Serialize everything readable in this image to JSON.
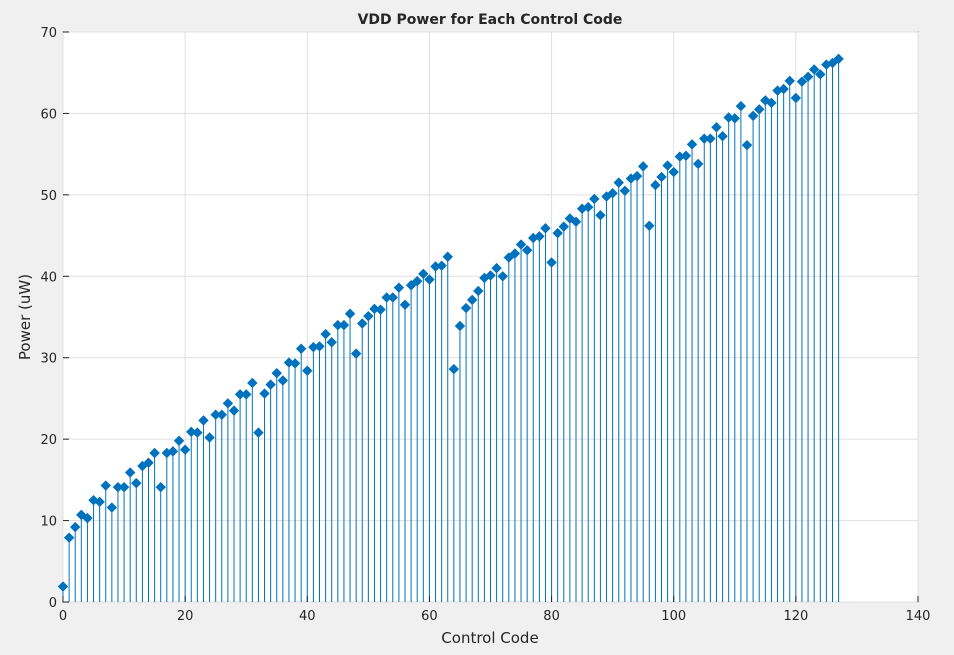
{
  "chart_data": {
    "type": "stem",
    "title": "VDD Power for Each Control Code",
    "xlabel": "Control Code",
    "ylabel": "Power (uW)",
    "xlim": [
      0,
      140
    ],
    "ylim": [
      0,
      70
    ],
    "xticks": [
      0,
      20,
      40,
      60,
      80,
      100,
      120,
      140
    ],
    "yticks": [
      0,
      10,
      20,
      30,
      40,
      50,
      60,
      70
    ],
    "grid": true,
    "color": "#0072BD",
    "series": [
      {
        "x": [
          0,
          1,
          2,
          3,
          4,
          5,
          6,
          7,
          8,
          9,
          10,
          11,
          12,
          13,
          14,
          15,
          16,
          17,
          18,
          19,
          20,
          21,
          22,
          23,
          24,
          25,
          26,
          27,
          28,
          29,
          30,
          31,
          32,
          33,
          34,
          35,
          36,
          37,
          38,
          39,
          40,
          41,
          42,
          43,
          44,
          45,
          46,
          47,
          48,
          49,
          50,
          51,
          52,
          53,
          54,
          55,
          56,
          57,
          58,
          59,
          60,
          61,
          62,
          63,
          64,
          65,
          66,
          67,
          68,
          69,
          70,
          71,
          72,
          73,
          74,
          75,
          76,
          77,
          78,
          79,
          80,
          81,
          82,
          83,
          84,
          85,
          86,
          87,
          88,
          89,
          90,
          91,
          92,
          93,
          94,
          95,
          96,
          97,
          98,
          99,
          100,
          101,
          102,
          103,
          104,
          105,
          106,
          107,
          108,
          109,
          110,
          111,
          112,
          113,
          114,
          115,
          116,
          117,
          118,
          119,
          120,
          121,
          122,
          123,
          124,
          125,
          126,
          127
        ],
        "y": [
          1.9,
          7.9,
          9.2,
          10.7,
          10.3,
          12.5,
          12.3,
          14.3,
          11.6,
          14.1,
          14.1,
          15.9,
          14.6,
          16.7,
          17.1,
          18.3,
          14.1,
          18.3,
          18.5,
          19.8,
          18.7,
          20.9,
          20.8,
          22.3,
          20.2,
          23.0,
          23.0,
          24.4,
          23.5,
          25.5,
          25.5,
          26.9,
          20.8,
          25.6,
          26.7,
          28.1,
          27.2,
          29.4,
          29.3,
          31.1,
          28.4,
          31.3,
          31.4,
          32.9,
          31.9,
          34.0,
          34.0,
          35.4,
          30.5,
          34.2,
          35.1,
          36.0,
          35.9,
          37.4,
          37.4,
          38.6,
          36.5,
          38.9,
          39.4,
          40.3,
          39.6,
          41.2,
          41.3,
          42.4,
          28.6,
          33.9,
          36.1,
          37.1,
          38.2,
          39.8,
          40.1,
          41.0,
          40.0,
          42.3,
          42.8,
          43.9,
          43.2,
          44.7,
          44.9,
          45.9,
          41.7,
          45.3,
          46.1,
          47.1,
          46.7,
          48.3,
          48.5,
          49.5,
          47.5,
          49.8,
          50.2,
          51.5,
          50.5,
          52.0,
          52.3,
          53.5,
          46.2,
          51.2,
          52.2,
          53.6,
          52.8,
          54.7,
          54.8,
          56.2,
          53.8,
          56.9,
          56.9,
          58.3,
          57.2,
          59.5,
          59.4,
          60.9,
          56.1,
          59.7,
          60.5,
          61.6,
          61.3,
          62.8,
          63.0,
          64.0,
          61.9,
          63.9,
          64.5,
          65.4,
          64.8,
          66.0,
          66.2,
          66.7
        ]
      }
    ]
  }
}
